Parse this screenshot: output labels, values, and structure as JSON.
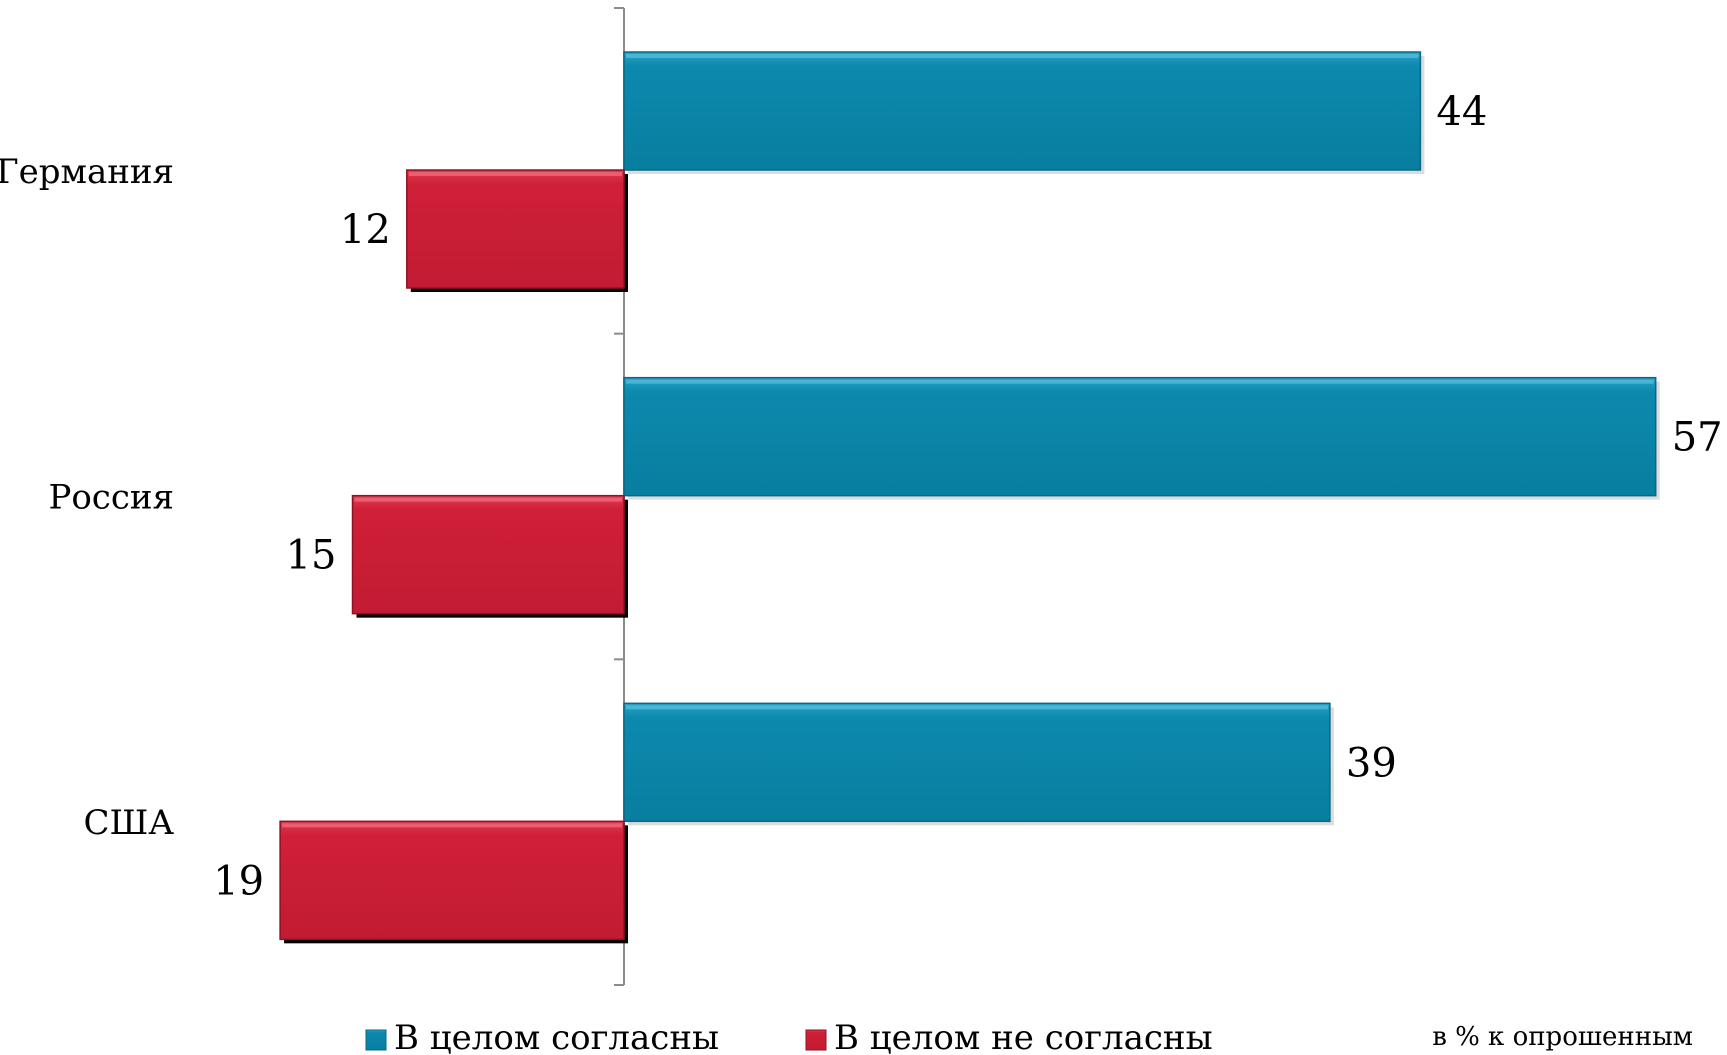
{
  "chart_data": {
    "type": "bar",
    "orientation": "horizontal",
    "categories": [
      "Германия",
      "Россия",
      "США"
    ],
    "series": [
      {
        "name": "В целом согласны",
        "values": [
          44,
          57,
          39
        ],
        "color": "#0a84a8",
        "direction": "right"
      },
      {
        "name": "В целом не согласны",
        "values": [
          12,
          15,
          19
        ],
        "color": "#cc1f39",
        "direction": "left"
      }
    ],
    "note": "в % к опрошенным",
    "legend_position": "bottom",
    "grid": false
  }
}
